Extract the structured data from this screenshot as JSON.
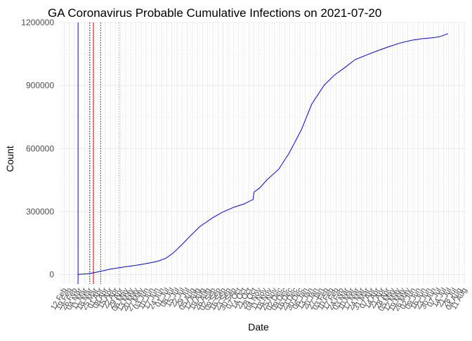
{
  "chart_data": {
    "type": "line",
    "title": "GA Coronavirus Probable Cumulative Infections on 2021-07-20",
    "xlabel": "Date",
    "ylabel": "Count",
    "ylim": [
      -45000,
      1200000
    ],
    "xlim": [
      "2020-02-05",
      "2021-08-14"
    ],
    "y_ticks": [
      0,
      300000,
      600000,
      900000,
      1200000
    ],
    "y_tick_labels": [
      "0",
      "300000",
      "600000",
      "900000",
      "1200000"
    ],
    "x_tick_dates": [
      "2020-02-12",
      "2020-02-19",
      "2020-02-26",
      "2020-03-04",
      "2020-03-11",
      "2020-03-18",
      "2020-03-25",
      "2020-04-01",
      "2020-04-08",
      "2020-04-15",
      "2020-04-22",
      "2020-04-29",
      "2020-05-06",
      "2020-05-13",
      "2020-05-20",
      "2020-05-27",
      "2020-06-03",
      "2020-06-10",
      "2020-06-17",
      "2020-06-24",
      "2020-07-01",
      "2020-07-08",
      "2020-07-15",
      "2020-07-22",
      "2020-07-29",
      "2020-08-05",
      "2020-08-12",
      "2020-08-19",
      "2020-08-26",
      "2020-09-02",
      "2020-09-09",
      "2020-09-16",
      "2020-09-23",
      "2020-09-30",
      "2020-10-07",
      "2020-10-14",
      "2020-10-21",
      "2020-10-28",
      "2020-11-04",
      "2020-11-11",
      "2020-11-18",
      "2020-11-25",
      "2020-12-02",
      "2020-12-09",
      "2020-12-16",
      "2020-12-23",
      "2020-12-30",
      "2021-01-06",
      "2021-01-13",
      "2021-01-20",
      "2021-01-27",
      "2021-02-03",
      "2021-02-10",
      "2021-02-17",
      "2021-02-24",
      "2021-03-03",
      "2021-03-10",
      "2021-03-17",
      "2021-03-24",
      "2021-03-31",
      "2021-04-07",
      "2021-04-14",
      "2021-04-21",
      "2021-04-28",
      "2021-05-05",
      "2021-05-12",
      "2021-05-19",
      "2021-05-26",
      "2021-06-02",
      "2021-06-09",
      "2021-06-16",
      "2021-06-23",
      "2021-06-30",
      "2021-07-07",
      "2021-07-14",
      "2021-07-21",
      "2021-07-28",
      "2021-08-04",
      "2021-08-11"
    ],
    "x_tick_labels": [
      "12 Feb",
      "19 Feb",
      "26 Feb",
      "04 Mar",
      "11 Mar",
      "18 Mar",
      "25 Mar",
      "01 Apr",
      "08 Apr",
      "15 Apr",
      "22 Apr",
      "29 Apr",
      "06 May",
      "13 May",
      "20 May",
      "27 May",
      "03 Jun",
      "10 Jun",
      "17 Jun",
      "24 Jun",
      "01 Jul",
      "08 Jul",
      "15 Jul",
      "22 Jul",
      "29 Jul",
      "05 Aug",
      "12 Aug",
      "19 Aug",
      "26 Aug",
      "02 Sep",
      "09 Sep",
      "16 Sep",
      "23 Sep",
      "30 Sep",
      "07 Oct",
      "14 Oct",
      "21 Oct",
      "28 Oct",
      "04 Nov",
      "11 Nov",
      "18 Nov",
      "25 Nov",
      "02 Dec",
      "09 Dec",
      "16 Dec",
      "23 Dec",
      "30 Dec",
      "06 Jan",
      "13 Jan",
      "20 Jan",
      "27 Jan",
      "03 Feb",
      "10 Feb",
      "17 Feb",
      "24 Feb",
      "03 Mar",
      "10 Mar",
      "17 Mar",
      "24 Mar",
      "31 Mar",
      "07 Apr",
      "14 Apr",
      "21 Apr",
      "28 Apr",
      "05 May",
      "12 May",
      "19 May",
      "26 May",
      "02 Jun",
      "09 Jun",
      "16 Jun",
      "23 Jun",
      "30 Jun",
      "07 Jul",
      "14 Jul",
      "21 Jul",
      "28 Jul",
      "04 Aug",
      "11 Aug"
    ],
    "grid": true,
    "series": [
      {
        "color": "#0000ff",
        "x": [
          "2020-03-02",
          "2020-03-15",
          "2020-03-25",
          "2020-04-15",
          "2020-05-01",
          "2020-05-20",
          "2020-06-01",
          "2020-06-10",
          "2020-06-20",
          "2020-06-30",
          "2020-07-10",
          "2020-07-20",
          "2020-08-01",
          "2020-08-15",
          "2020-09-01",
          "2020-09-15",
          "2020-10-01",
          "2020-10-15",
          "2020-10-27",
          "2020-10-28",
          "2020-11-05",
          "2020-11-15",
          "2020-12-01",
          "2020-12-15",
          "2021-01-01",
          "2021-01-15",
          "2021-02-01",
          "2021-02-15",
          "2021-03-01",
          "2021-03-15",
          "2021-04-01",
          "2021-04-15",
          "2021-05-01",
          "2021-05-15",
          "2021-06-01",
          "2021-06-15",
          "2021-07-01",
          "2021-07-10",
          "2021-07-20"
        ],
        "y": [
          1000,
          4000,
          10000,
          26000,
          35000,
          44000,
          51000,
          57000,
          65000,
          78000,
          103000,
          137000,
          180000,
          228000,
          269000,
          297000,
          321000,
          337000,
          358000,
          392000,
          413000,
          452000,
          502000,
          578000,
          691000,
          812000,
          902000,
          950000,
          985000,
          1023000,
          1047000,
          1066000,
          1086000,
          1102000,
          1116000,
          1123000,
          1128000,
          1134000,
          1147000
        ]
      }
    ],
    "reference_lines": [
      {
        "x": "2020-03-02",
        "color": "#0000ff",
        "style": "solid"
      },
      {
        "x": "2020-03-18",
        "color": "#000000",
        "style": "dotted"
      },
      {
        "x": "2020-03-23",
        "color": "#cc0000",
        "style": "solid"
      },
      {
        "x": "2020-04-02",
        "color": "#cc0000",
        "style": "dotted"
      },
      {
        "x": "2020-04-27",
        "color": "#aaaaaa",
        "style": "dotted"
      }
    ]
  }
}
